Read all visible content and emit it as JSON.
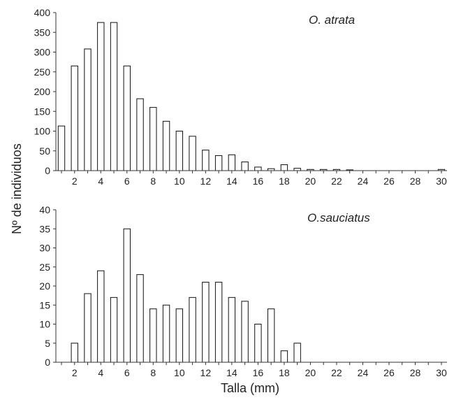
{
  "figure": {
    "ylabel": "Nº de individuos",
    "xlabel": "Talla (mm)"
  },
  "chart_data": [
    {
      "type": "bar",
      "title": "O. atrata",
      "categories": [
        1,
        2,
        3,
        4,
        5,
        6,
        7,
        8,
        9,
        10,
        11,
        12,
        13,
        14,
        15,
        16,
        17,
        18,
        19,
        20,
        21,
        22,
        23,
        24,
        25,
        26,
        27,
        28,
        29,
        30
      ],
      "values": [
        113,
        265,
        308,
        375,
        375,
        265,
        182,
        160,
        125,
        100,
        87,
        52,
        38,
        40,
        22,
        9,
        5,
        15,
        6,
        3,
        3,
        3,
        2,
        0,
        0,
        0,
        0,
        0,
        0,
        3
      ],
      "x_ticks": [
        2,
        4,
        6,
        8,
        10,
        12,
        14,
        16,
        18,
        20,
        22,
        24,
        26,
        28,
        30
      ],
      "y_ticks": [
        0,
        50,
        100,
        150,
        200,
        250,
        300,
        350,
        400
      ],
      "ylim": [
        0,
        400
      ],
      "xlim": [
        1,
        30
      ],
      "grid": false,
      "legend": "none"
    },
    {
      "type": "bar",
      "title": "O.sauciatus",
      "categories": [
        1,
        2,
        3,
        4,
        5,
        6,
        7,
        8,
        9,
        10,
        11,
        12,
        13,
        14,
        15,
        16,
        17,
        18,
        19,
        20,
        21,
        22,
        23,
        24,
        25,
        26,
        27,
        28,
        29,
        30
      ],
      "values": [
        0,
        5,
        18,
        24,
        17,
        35,
        23,
        14,
        15,
        14,
        17,
        21,
        21,
        17,
        16,
        10,
        14,
        3,
        5,
        0,
        0,
        0,
        0,
        0,
        0,
        0,
        0,
        0,
        0,
        0
      ],
      "x_ticks": [
        2,
        4,
        6,
        8,
        10,
        12,
        14,
        16,
        18,
        20,
        22,
        24,
        26,
        28,
        30
      ],
      "y_ticks": [
        0,
        5,
        10,
        15,
        20,
        25,
        30,
        35,
        40
      ],
      "ylim": [
        0,
        40
      ],
      "xlim": [
        1,
        30
      ],
      "grid": false,
      "legend": "none"
    }
  ]
}
